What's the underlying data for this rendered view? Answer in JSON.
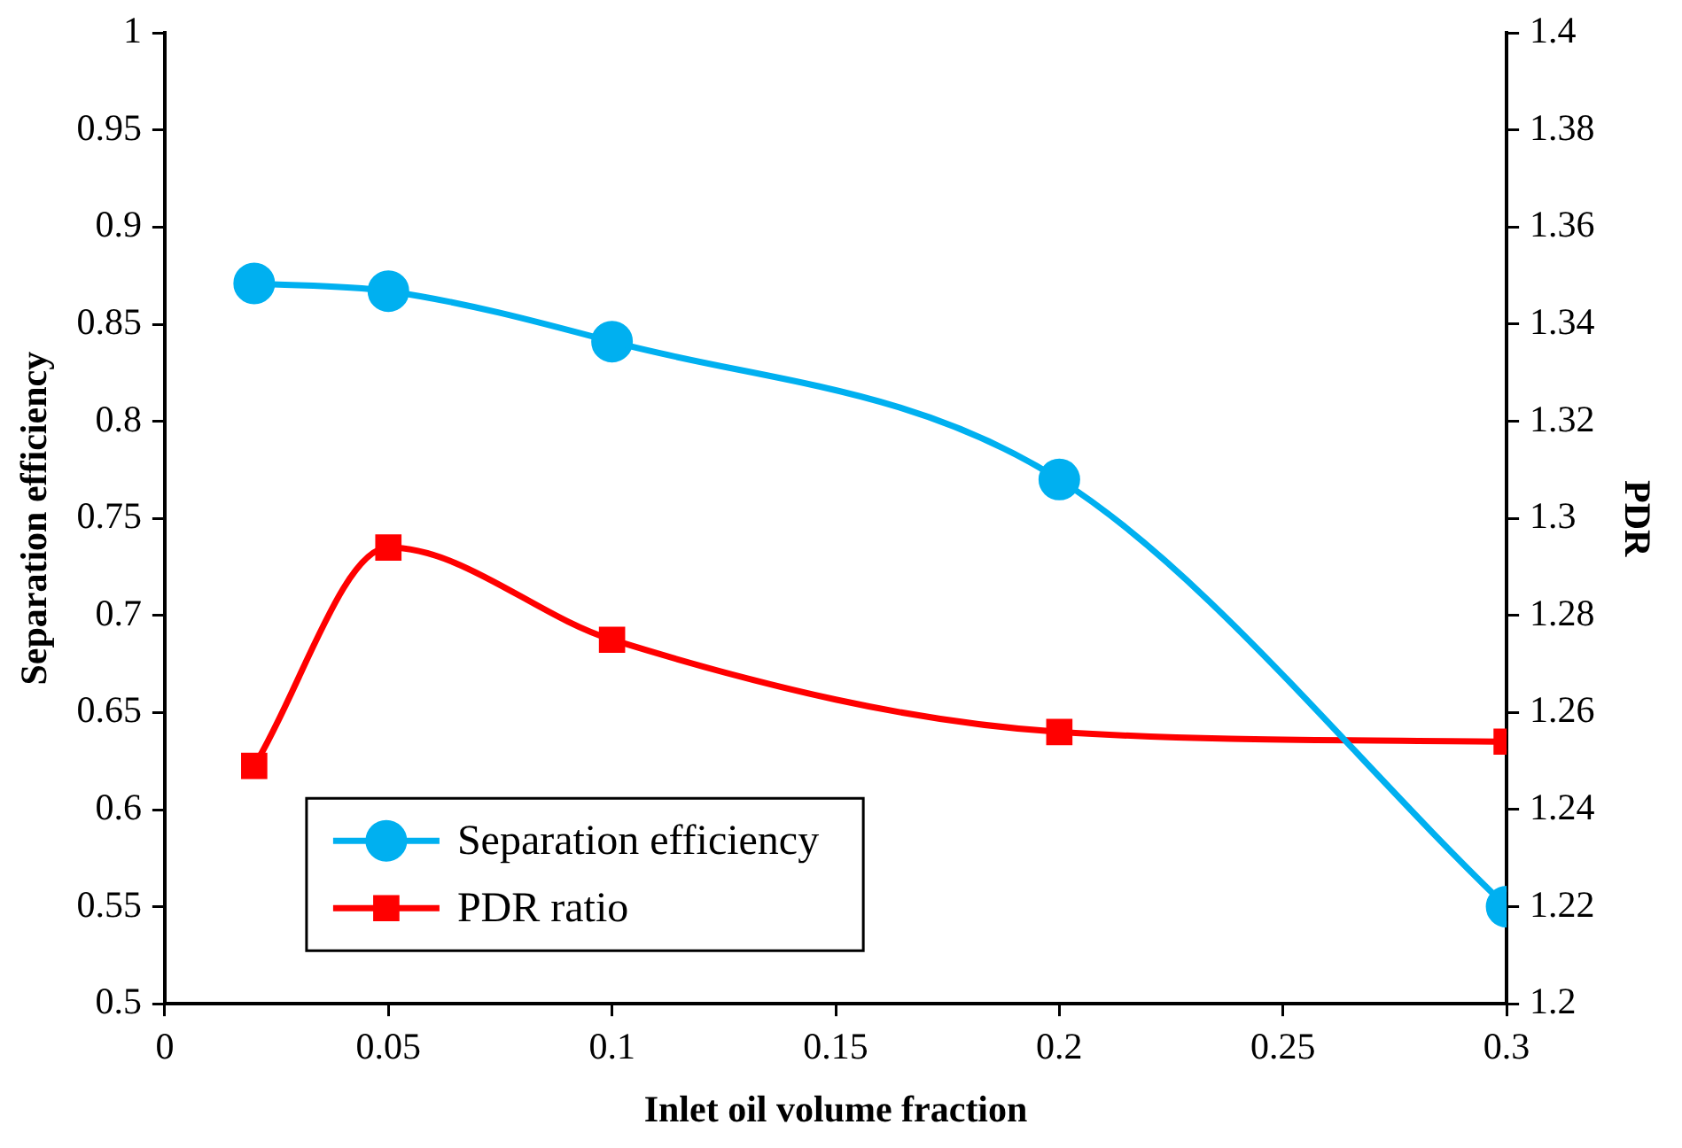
{
  "chart_data": {
    "type": "line",
    "xlabel": "Inlet oil volume fraction",
    "ylabel": "Separation efficiency",
    "y2label": "PDR",
    "x": [
      0.02,
      0.05,
      0.1,
      0.2,
      0.3
    ],
    "series": [
      {
        "name": "Separation efficiency",
        "color": "#00b0f0",
        "marker": "circle",
        "values": [
          0.871,
          0.867,
          0.841,
          0.77,
          0.55
        ]
      },
      {
        "name": "PDR ratio",
        "color": "#ff0000",
        "marker": "square",
        "axis": "y2",
        "values": [
          1.249,
          1.294,
          1.275,
          1.256,
          1.254
        ]
      }
    ],
    "xlim": [
      0,
      0.3
    ],
    "xticks": [
      0,
      0.05,
      0.1,
      0.15,
      0.2,
      0.25,
      0.3
    ],
    "ylim": [
      0.5,
      1
    ],
    "yticks": [
      0.5,
      0.55,
      0.6,
      0.65,
      0.7,
      0.75,
      0.8,
      0.85,
      0.9,
      0.95,
      1
    ],
    "y2lim": [
      1.2,
      1.4
    ],
    "y2ticks": [
      1.2,
      1.22,
      1.24,
      1.26,
      1.28,
      1.3,
      1.32,
      1.34,
      1.36,
      1.38,
      1.4
    ],
    "grid": false,
    "legend": "bottom left",
    "line_style": "solid"
  }
}
